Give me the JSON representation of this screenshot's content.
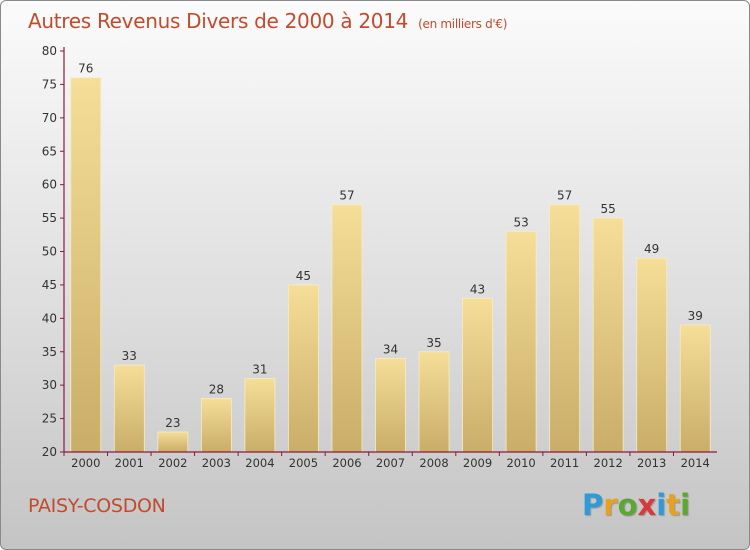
{
  "title": "Autres Revenus Divers de 2000 à 2014",
  "subtitle": "(en milliers d'€)",
  "footer": {
    "place": "PAISY-COSDON"
  },
  "logo": {
    "letters": [
      "P",
      "r",
      "o",
      "x",
      "i",
      "t",
      "i"
    ],
    "colors": [
      "#2f9ad8",
      "#e8a020",
      "#5aa832",
      "#d63a3a",
      "#2f9ad8",
      "#e8a020",
      "#5aa832"
    ]
  },
  "colors": {
    "accent": "#c34a2c",
    "bar_light": "#f5de98",
    "bar_dark": "#c9ad68",
    "axis": "#8b1a3c"
  },
  "chart_data": {
    "type": "bar",
    "title": "Autres Revenus Divers de 2000 à 2014",
    "subtitle": "(en milliers d'€)",
    "categories": [
      "2000",
      "2001",
      "2002",
      "2003",
      "2004",
      "2005",
      "2006",
      "2007",
      "2008",
      "2009",
      "2010",
      "2011",
      "2012",
      "2013",
      "2014"
    ],
    "values": [
      76,
      33,
      23,
      28,
      31,
      45,
      57,
      34,
      35,
      43,
      53,
      57,
      55,
      49,
      39
    ],
    "ylim": [
      20,
      80
    ],
    "yticks": [
      20,
      25,
      30,
      35,
      40,
      45,
      50,
      55,
      60,
      65,
      70,
      75,
      80
    ],
    "grid": false,
    "data_labels": true
  }
}
